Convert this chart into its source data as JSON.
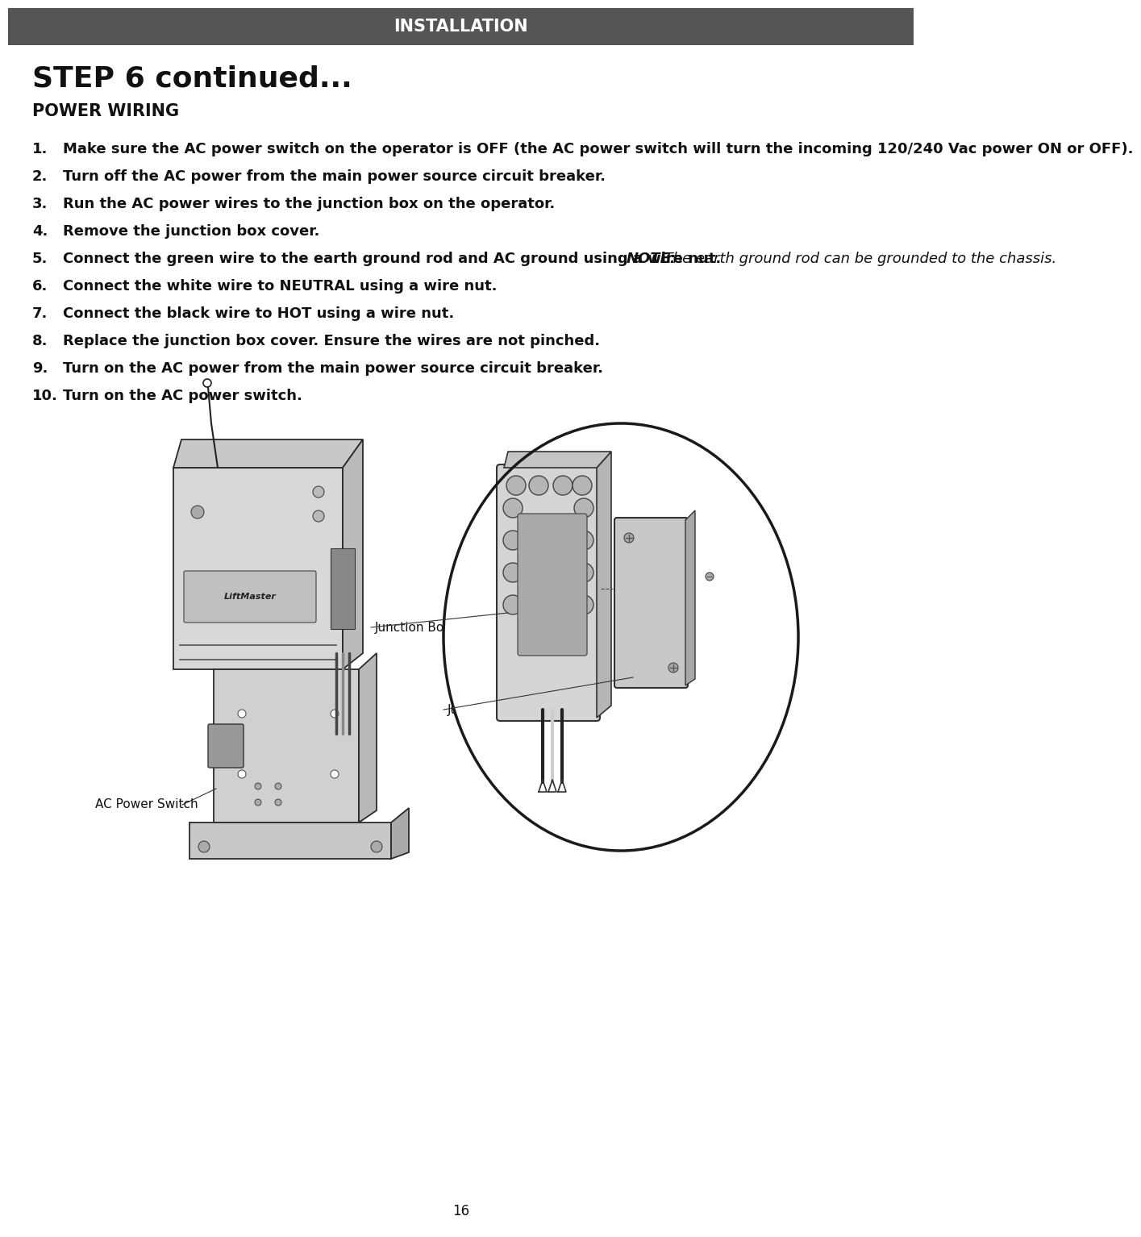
{
  "header_text": "INSTALLATION",
  "header_bg_color": "#555555",
  "header_text_color": "#ffffff",
  "title": "STEP 6 continued...",
  "subtitle": "POWER WIRING",
  "page_bg_color": "#ffffff",
  "page_number": "16",
  "instructions": [
    {
      "num": "1.",
      "text": "Make sure the AC power switch on the operator is OFF (the AC power switch will turn the incoming 120/240 Vac power ON or OFF)."
    },
    {
      "num": "2.",
      "text": "Turn off the AC power from the main power source circuit breaker."
    },
    {
      "num": "3.",
      "text": "Run the AC power wires to the junction box on the operator."
    },
    {
      "num": "4.",
      "text": "Remove the junction box cover."
    },
    {
      "num": "5.",
      "text_normal": "Connect the green wire to the earth ground rod and AC ground using a wire nut. ",
      "text_bold_italic": "NOTE:",
      "text_italic": " The earth ground rod can be grounded to the chassis."
    },
    {
      "num": "6.",
      "text": "Connect the white wire to NEUTRAL using a wire nut."
    },
    {
      "num": "7.",
      "text": "Connect the black wire to HOT using a wire nut."
    },
    {
      "num": "8.",
      "text": "Replace the junction box cover. Ensure the wires are not pinched."
    },
    {
      "num": "9.",
      "text": "Turn on the AC power from the main power source circuit breaker."
    },
    {
      "num": "10.",
      "text": "Turn on the AC power switch."
    }
  ],
  "label_junction_box": "Junction Box",
  "label_junction_box_cover": "Junction Box Cover",
  "label_ac_power_switch": "AC Power Switch",
  "title_fontsize": 26,
  "subtitle_fontsize": 15,
  "body_fontsize": 13,
  "header_fontsize": 15
}
